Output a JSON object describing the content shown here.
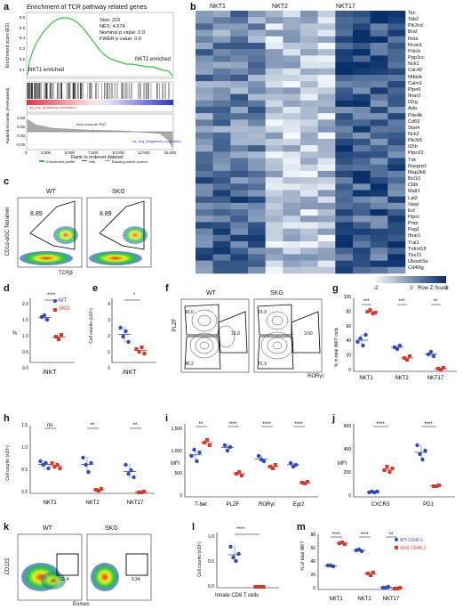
{
  "figure": {
    "labels": [
      "a",
      "b",
      "c",
      "d",
      "e",
      "f",
      "g",
      "h",
      "i",
      "j",
      "k",
      "l",
      "m"
    ],
    "panel_a": {
      "title": "Enrichment of TCR pathway related genes",
      "ylabel_top": "Enrichment score (ES)",
      "ylabel_bottom": "Ranked list metric (PreRanked)",
      "xlabel": "Rank in ordered dataset",
      "stats": [
        "Size: 216",
        "NES: 4.574",
        "Nominal p value: 0.0",
        "FWER p value: 0.0"
      ],
      "left_label": "NKT1 enriched",
      "right_label": "NKT2 enriched",
      "pos_label": "'na_pos' (positively correlated)",
      "neg_label": "'na_neg' (negatively correlated)",
      "zero_cross": "Zero cross at 7047",
      "legend": [
        "Enrichment profile",
        "Hits",
        "Ranking metric scores"
      ],
      "x_ticks": [
        "0",
        "2,500",
        "5,000",
        "7,500",
        "10,000",
        "12,500",
        "15,000"
      ],
      "y_ticks_top": [
        "0.6",
        "0.5",
        "0.4",
        "0.3",
        "0.2",
        "0.1",
        "0.0"
      ],
      "y_ticks_bottom": [
        "0.50",
        "0.25",
        "0.00",
        "-0.25"
      ]
    },
    "panel_b": {
      "groups": [
        "NKT1",
        "NKT2",
        "NKT17"
      ],
      "genes": [
        "Tec",
        "Tab2",
        "Pik3cd",
        "Braf",
        "Rela",
        "Rcan1",
        "Prkcb",
        "Ppp3cc",
        "Nck1",
        "Cdc42",
        "Nfkbib",
        "Calm1",
        "Ptpn6",
        "Ifnar2",
        "Il2rg",
        "Ada",
        "Pde4b",
        "Cd69",
        "Stat4",
        "Nck2",
        "Pik3r5",
        "Il2rb",
        "Ptpn22",
        "Txk",
        "Rasgrp2",
        "Map3k8",
        "Bcl10",
        "Cblb",
        "Malt1",
        "Lat2",
        "Vasp",
        "Evl",
        "Ptprc",
        "Pmp",
        "Pag1",
        "Ifnar1",
        "Trat1",
        "Tnfrsf18",
        "Tbx21",
        "Ubash3a",
        "Cd40lg"
      ],
      "scale_ticks": [
        "-2",
        "0",
        "2"
      ],
      "scale_label": "Row Z Score",
      "colors": {
        "low": "#f4f8fc",
        "high": "#08306b"
      }
    },
    "panel_c": {
      "wt": "WT",
      "skg": "SKG",
      "gate_wt": "8.89",
      "gate_skg": "8.89",
      "ylabel": "CD1d-αGC Tetramer",
      "xlabel": "TCRβ"
    },
    "panel_d": {
      "legend": [
        "WT",
        "SKG"
      ],
      "ylabel": "%",
      "xlabel": "iNKT",
      "sig": "****",
      "y_ticks": [
        "0.0",
        "0.5",
        "1.0",
        "1.5",
        "2.0"
      ],
      "colors": {
        "wt": "#2e4bbf",
        "skg": "#d83a2a"
      }
    },
    "panel_e": {
      "ylabel": "Cell counts (x10⁵)",
      "xlabel": "iNKT",
      "sig": "*",
      "y_ticks": [
        "0",
        "1",
        "2",
        "3",
        "4"
      ]
    },
    "panel_f": {
      "wt": "WT",
      "skg": "SKG",
      "ylabel": "PLZF",
      "xlabel": "RORγt",
      "gates_wt": [
        "43.0",
        "10.3",
        "46.2"
      ],
      "gates_skg": [
        "23.3",
        "3.60",
        "72.3"
      ]
    },
    "panel_g": {
      "ylabel": "% in total iNKT cells",
      "sigs": [
        "***",
        "***",
        "**"
      ],
      "categories": [
        "NKT1",
        "NKT2",
        "NKT17"
      ],
      "y_ticks": [
        "0",
        "20",
        "40",
        "60",
        "80",
        "100"
      ]
    },
    "panel_h": {
      "ylabel": "Cell counts (x10⁵)",
      "sigs": [
        "ns",
        "**",
        "**"
      ],
      "categories": [
        "NKT1",
        "NKT2",
        "NKT17"
      ],
      "y_ticks": [
        "0.0",
        "0.5",
        "1.0",
        "1.5"
      ]
    },
    "panel_i": {
      "ylabel": "MFI",
      "sigs": [
        "**",
        "****",
        "****",
        "****"
      ],
      "categories": [
        "T-bet",
        "PLZF",
        "RORγt",
        "Egr2"
      ],
      "y_ticks": [
        "0",
        "500",
        "1,000",
        "1,500"
      ]
    },
    "panel_j": {
      "ylabel": "MFI",
      "sigs": [
        "****",
        "****"
      ],
      "categories": [
        "CXCR3",
        "PD1"
      ],
      "y_ticks": [
        "0",
        "200",
        "400",
        "600"
      ]
    },
    "panel_k": {
      "wt": "WT",
      "skg": "SKG",
      "ylabel": "CD122",
      "xlabel": "Eomes",
      "gate_wt": "11.4",
      "gate_skg": "0.34"
    },
    "panel_l": {
      "ylabel": "Cell counts (x10⁵)",
      "xlabel": "Innate CD8 T cells",
      "sig": "****",
      "y_ticks": [
        "0.0",
        "0.5",
        "1.0"
      ]
    },
    "panel_m": {
      "ylabel": "% of total iNKT",
      "sigs": [
        "****",
        "****",
        "**"
      ],
      "categories": [
        "NKT1",
        "NKT2",
        "NKT17"
      ],
      "y_ticks": [
        "0",
        "20",
        "40",
        "60",
        "80"
      ],
      "legend": [
        "WT-CD45.1",
        "SKG-CD45.2"
      ]
    }
  }
}
